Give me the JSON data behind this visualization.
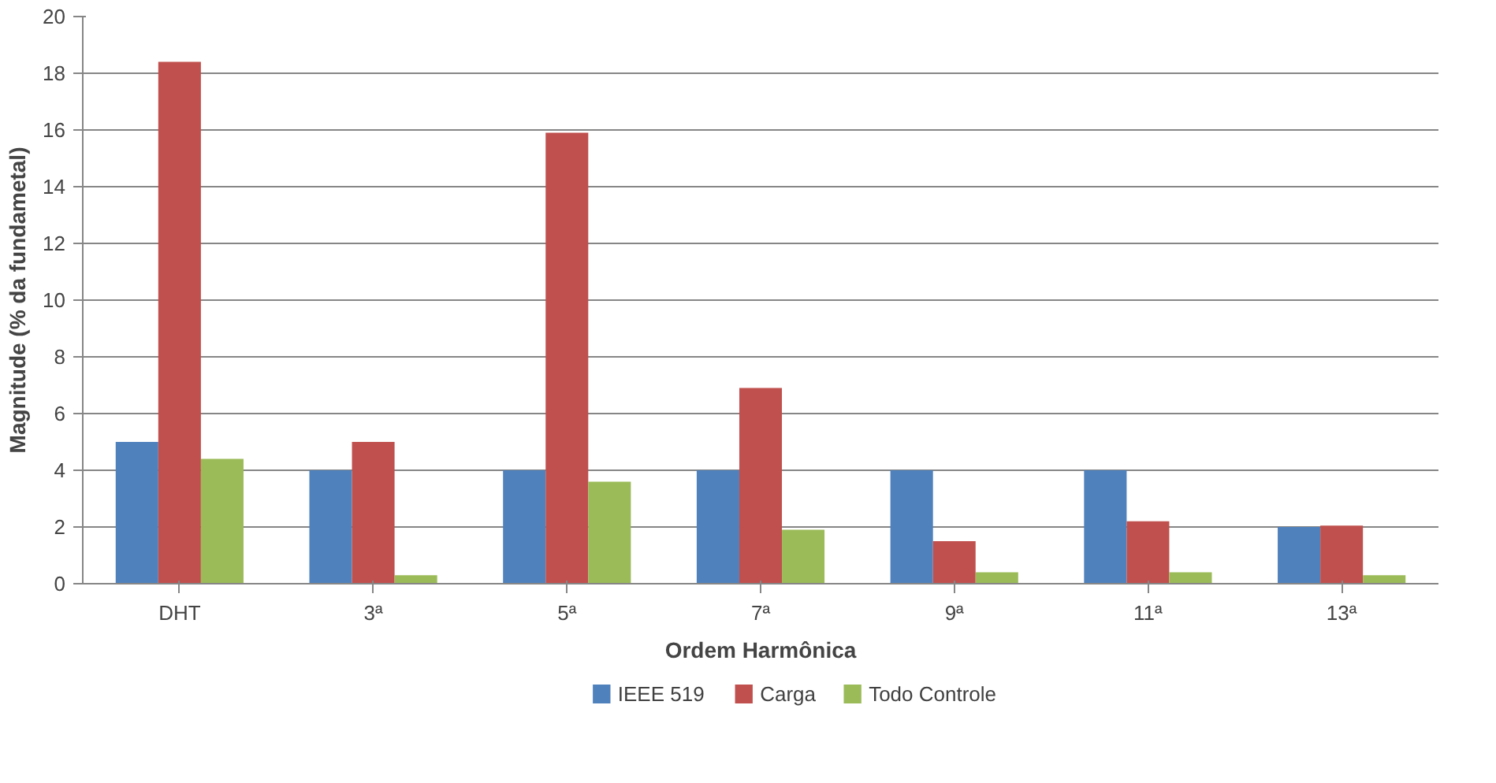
{
  "chart_data": {
    "type": "bar",
    "xlabel": "Ordem Harmônica",
    "ylabel": "Magnitude (% da fundametal)",
    "categories": [
      "DHT",
      "3ª",
      "5ª",
      "7ª",
      "9ª",
      "11ª",
      "13ª"
    ],
    "series": [
      {
        "name": "IEEE 519",
        "color": "#4f81bd",
        "values": [
          5,
          4,
          4,
          4,
          4,
          4,
          2
        ]
      },
      {
        "name": "Carga",
        "color": "#c0504d",
        "values": [
          18.4,
          5,
          15.9,
          6.9,
          1.5,
          2.2,
          2.05
        ]
      },
      {
        "name": "Todo Controle",
        "color": "#9bbb59",
        "values": [
          4.4,
          0.3,
          3.6,
          1.9,
          0.4,
          0.4,
          0.3
        ]
      }
    ],
    "ylim": [
      0,
      20
    ],
    "yticks": [
      0,
      2,
      4,
      6,
      8,
      10,
      12,
      14,
      16,
      18,
      20
    ],
    "grid": "y",
    "legend": "bottom"
  }
}
